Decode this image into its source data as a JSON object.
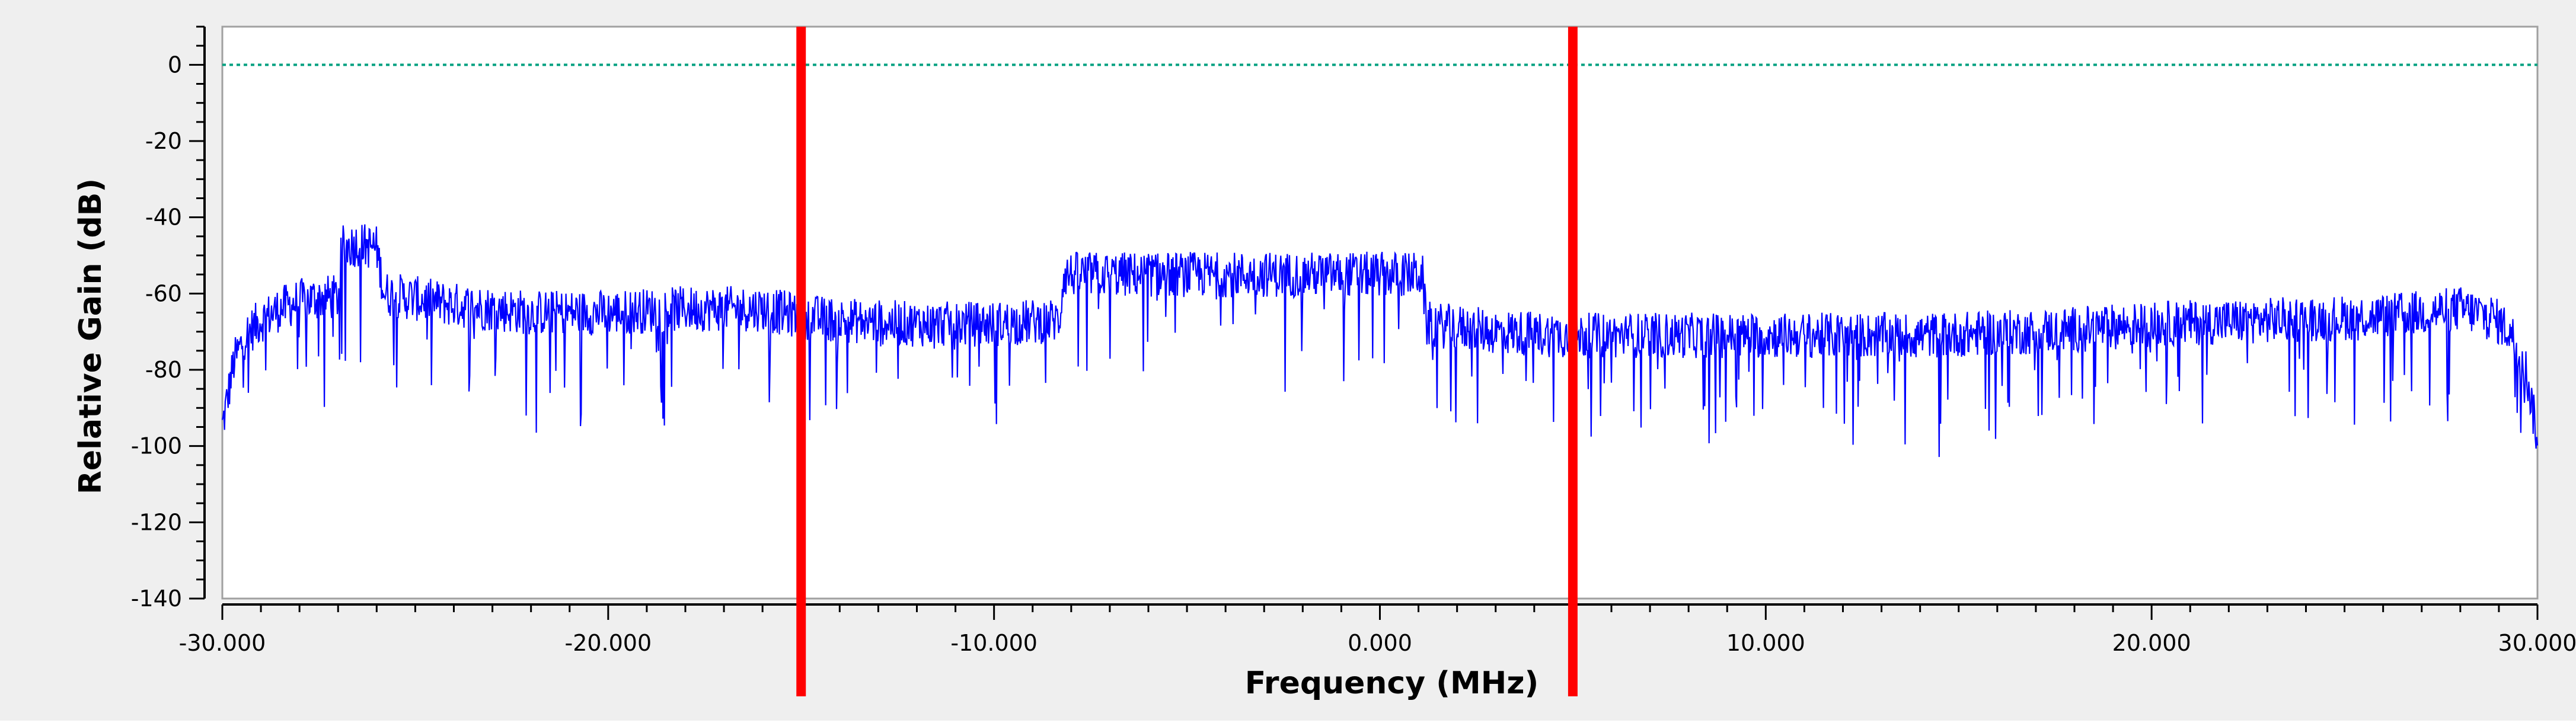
{
  "chart_data": {
    "type": "line",
    "title": "",
    "xlabel": "Frequency (MHz)",
    "ylabel": "Relative Gain (dB)",
    "xlim": [
      -30,
      30
    ],
    "ylim": [
      -140,
      10
    ],
    "x_ticks": [
      -30,
      -20,
      -10,
      0,
      10,
      20,
      30
    ],
    "x_tick_labels": [
      "-30.000",
      "-20.000",
      "-10.000",
      "0.000",
      "10.000",
      "20.000",
      "30.000"
    ],
    "y_ticks": [
      0,
      -20,
      -40,
      -60,
      -80,
      -100,
      -120,
      -140
    ],
    "y_tick_labels": [
      "0",
      "-20",
      "-40",
      "-60",
      "-80",
      "-100",
      "-120",
      "-140"
    ],
    "grid": false,
    "colors": {
      "spectrum": "#0000ff",
      "reference_line": "#00a080",
      "markers": "#ff0000",
      "panel_background": "#efefef",
      "plot_background": "#ffffff"
    },
    "reference_line_y": 0,
    "vertical_markers_x": [
      -15,
      5
    ],
    "series": [
      {
        "values": [
          {
            "x": -30.0,
            "y": -95
          },
          {
            "x": -29.7,
            "y": -78
          },
          {
            "x": -29.4,
            "y": -71
          },
          {
            "x": -29.0,
            "y": -67
          },
          {
            "x": -28.5,
            "y": -64
          },
          {
            "x": -28.0,
            "y": -62
          },
          {
            "x": -27.4,
            "y": -61
          },
          {
            "x": -27.0,
            "y": -61
          },
          {
            "x": -26.9,
            "y": -48
          },
          {
            "x": -26.5,
            "y": -47
          },
          {
            "x": -26.0,
            "y": -48
          },
          {
            "x": -25.8,
            "y": -60
          },
          {
            "x": -24.0,
            "y": -63
          },
          {
            "x": -22.0,
            "y": -65
          },
          {
            "x": -20.0,
            "y": -65
          },
          {
            "x": -18.0,
            "y": -64
          },
          {
            "x": -16.0,
            "y": -64
          },
          {
            "x": -15.0,
            "y": -66
          },
          {
            "x": -14.0,
            "y": -67
          },
          {
            "x": -12.0,
            "y": -68
          },
          {
            "x": -10.0,
            "y": -68
          },
          {
            "x": -8.3,
            "y": -67
          },
          {
            "x": -8.2,
            "y": -55
          },
          {
            "x": -6.0,
            "y": -55
          },
          {
            "x": -4.0,
            "y": -55
          },
          {
            "x": -2.0,
            "y": -55
          },
          {
            "x": 0.0,
            "y": -55
          },
          {
            "x": 1.1,
            "y": -55
          },
          {
            "x": 1.2,
            "y": -68
          },
          {
            "x": 3.0,
            "y": -70
          },
          {
            "x": 5.0,
            "y": -71
          },
          {
            "x": 8.0,
            "y": -71
          },
          {
            "x": 11.0,
            "y": -71
          },
          {
            "x": 14.0,
            "y": -71
          },
          {
            "x": 17.0,
            "y": -70
          },
          {
            "x": 20.0,
            "y": -68
          },
          {
            "x": 23.0,
            "y": -67
          },
          {
            "x": 26.0,
            "y": -66
          },
          {
            "x": 28.0,
            "y": -64
          },
          {
            "x": 28.8,
            "y": -66
          },
          {
            "x": 29.3,
            "y": -70
          },
          {
            "x": 29.7,
            "y": -80
          },
          {
            "x": 30.0,
            "y": -98
          }
        ]
      }
    ]
  }
}
